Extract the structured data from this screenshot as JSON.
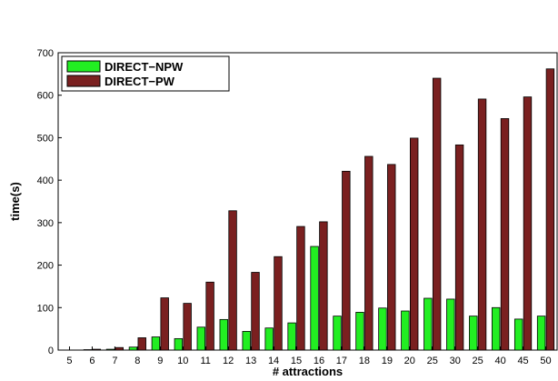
{
  "chart_data": {
    "type": "bar",
    "xlabel": "# attractions",
    "ylabel": "time(s)",
    "ylim": [
      0,
      700
    ],
    "yticks": [
      0,
      100,
      200,
      300,
      400,
      500,
      600,
      700
    ],
    "grid": false,
    "legend_position": "top-left",
    "categories": [
      "5",
      "6",
      "7",
      "8",
      "9",
      "10",
      "11",
      "12",
      "13",
      "14",
      "15",
      "16",
      "17",
      "18",
      "19",
      "20",
      "25",
      "30",
      "25",
      "40",
      "45",
      "50"
    ],
    "series": [
      {
        "name": "DIRECT−NPW",
        "color": "#22ee22",
        "values": [
          0,
          1,
          2,
          7,
          31,
          27,
          54,
          72,
          44,
          52,
          64,
          244,
          80,
          89,
          99,
          92,
          122,
          120,
          80,
          100,
          73,
          80
        ]
      },
      {
        "name": "DIRECT−PW",
        "color": "#7a2020",
        "values": [
          0,
          2,
          6,
          29,
          123,
          110,
          160,
          328,
          183,
          220,
          291,
          302,
          421,
          456,
          437,
          499,
          640,
          483,
          591,
          545,
          596,
          662
        ]
      }
    ]
  }
}
